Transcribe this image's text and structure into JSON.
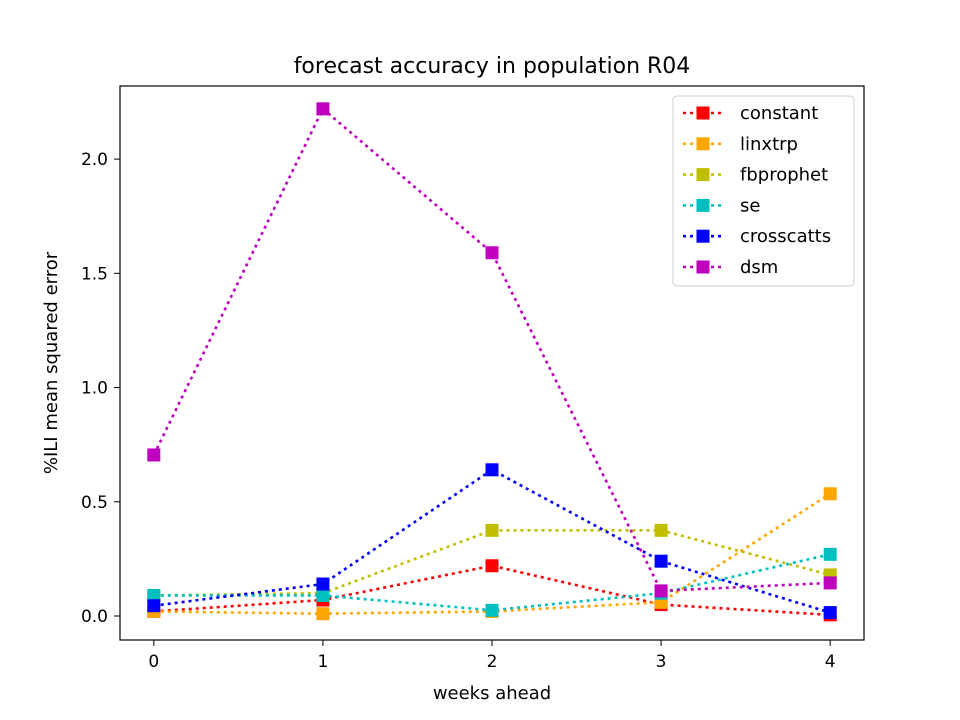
{
  "chart_data": {
    "type": "line",
    "title": "forecast accuracy in population R04",
    "xlabel": "weeks ahead",
    "ylabel": "%ILI mean squared error",
    "x": [
      0,
      1,
      2,
      3,
      4
    ],
    "xlim": [
      -0.2,
      4.2
    ],
    "ylim": [
      -0.105,
      2.32
    ],
    "xticks": [
      0,
      1,
      2,
      3,
      4
    ],
    "yticks": [
      0.0,
      0.5,
      1.0,
      1.5,
      2.0
    ],
    "ytick_labels": [
      "0.0",
      "0.5",
      "1.0",
      "1.5",
      "2.0"
    ],
    "grid": false,
    "legend_position": "top-right",
    "line_style": "dotted",
    "marker": "square",
    "series": [
      {
        "name": "constant",
        "color": "#ff0000",
        "values": [
          0.02,
          0.07,
          0.22,
          0.05,
          0.005
        ]
      },
      {
        "name": "linxtrp",
        "color": "#ffa500",
        "values": [
          0.02,
          0.01,
          0.02,
          0.06,
          0.535
        ]
      },
      {
        "name": "fbprophet",
        "color": "#bfbf00",
        "values": [
          0.09,
          0.1,
          0.375,
          0.375,
          0.18
        ]
      },
      {
        "name": "se",
        "color": "#00bfbf",
        "values": [
          0.09,
          0.09,
          0.025,
          0.1,
          0.27
        ]
      },
      {
        "name": "crosscatts",
        "color": "#0000ff",
        "values": [
          0.045,
          0.14,
          0.64,
          0.24,
          0.015
        ]
      },
      {
        "name": "dsm",
        "color": "#bf00bf",
        "values": [
          0.705,
          2.22,
          1.59,
          0.11,
          0.145
        ]
      }
    ]
  }
}
